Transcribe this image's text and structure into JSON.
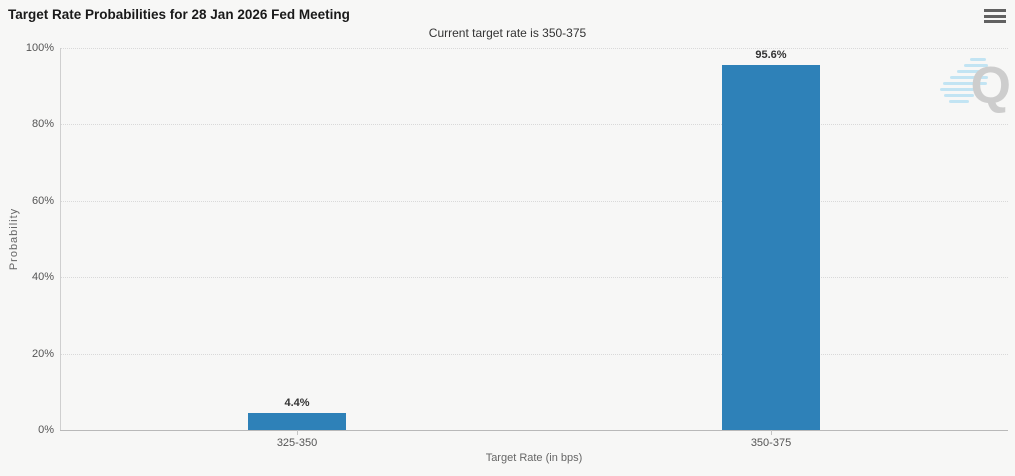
{
  "chart_data": {
    "type": "bar",
    "title": "Target Rate Probabilities for 28 Jan 2026 Fed Meeting",
    "subtitle": "Current target rate is 350-375",
    "categories": [
      "325-350",
      "350-375"
    ],
    "values": [
      4.4,
      95.6
    ],
    "data_labels": [
      "4.4%",
      "95.6%"
    ],
    "xlabel": "Target Rate (in bps)",
    "ylabel": "Probability",
    "ylim": [
      0,
      100
    ],
    "yticks": [
      0,
      20,
      40,
      60,
      80,
      100
    ],
    "ytick_labels": [
      "0%",
      "20%",
      "40%",
      "60%",
      "80%",
      "100%"
    ],
    "grid": "horizontal-dotted",
    "legend": "none",
    "bar_color": "#2E81B8"
  },
  "menu": {
    "icon": "hamburger-icon"
  },
  "watermark": {
    "letter": "Q"
  },
  "colors": {
    "background": "#f7f7f6",
    "bar": "#2E81B8",
    "title_text": "#1a1a1a",
    "subtitle_text": "#333333",
    "axis_text": "#555555",
    "gridline": "#d9d9d9",
    "axis_line": "#b9b9b9",
    "watermark_q": "#c9c9c9",
    "watermark_lines": "#aadcf2"
  }
}
